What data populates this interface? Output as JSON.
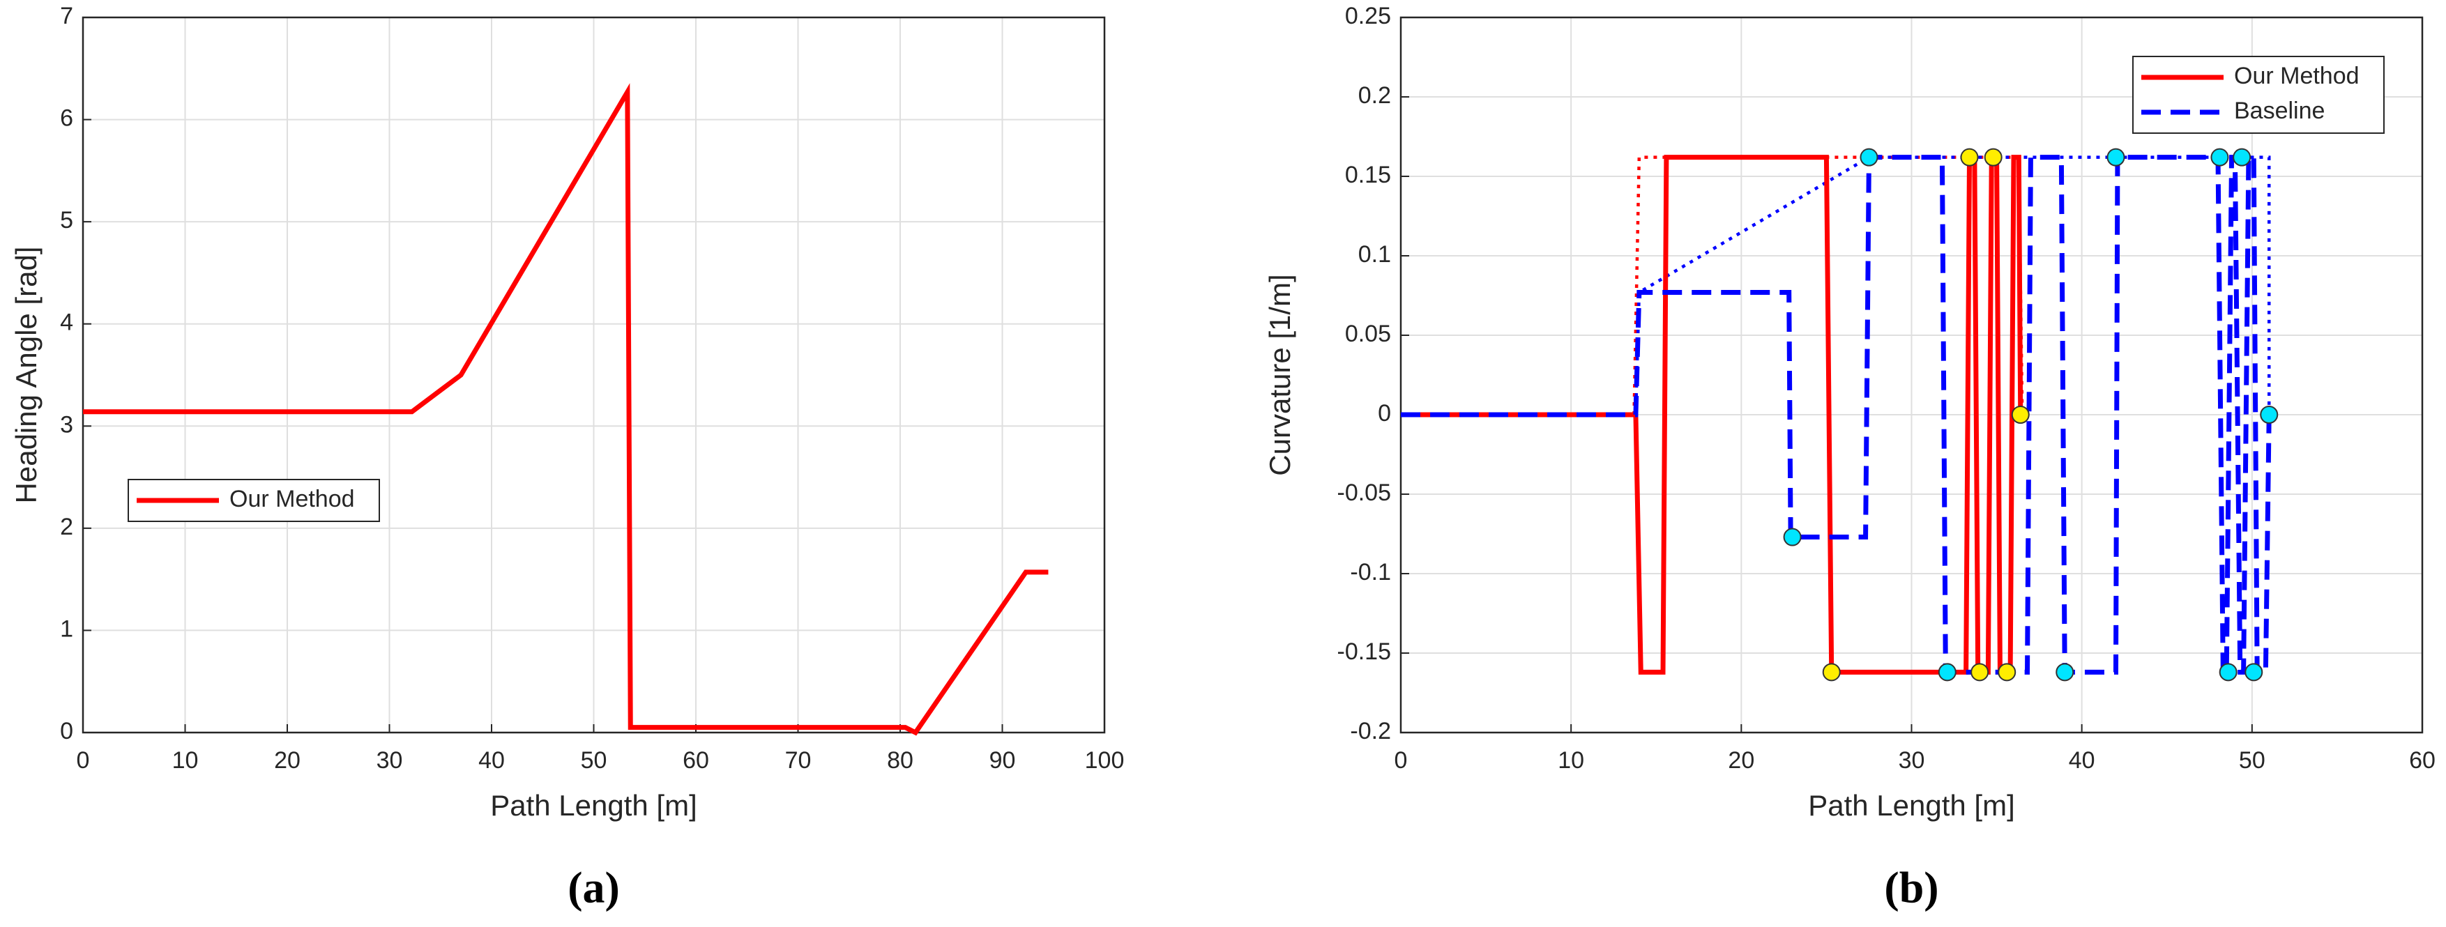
{
  "chart_data": [
    {
      "type": "line",
      "caption": "(a)",
      "xlabel": "Path Length [m]",
      "ylabel": "Heading Angle [rad]",
      "xlim": [
        0,
        100
      ],
      "xticks": [
        0,
        10,
        20,
        30,
        40,
        50,
        60,
        70,
        80,
        90,
        100
      ],
      "ylim": [
        0,
        7
      ],
      "yticks": [
        0,
        1,
        2,
        3,
        4,
        5,
        6,
        7
      ],
      "grid": true,
      "legend": "center left",
      "series": [
        {
          "name": "Our Method",
          "color": "#ff0000",
          "dash": "solid",
          "x": [
            0,
            32.2,
            37,
            53.3,
            53.6,
            80.5,
            81.5,
            92.3,
            94.5
          ],
          "values": [
            3.14,
            3.14,
            3.5,
            6.27,
            0.05,
            0.05,
            0,
            1.57,
            1.57
          ]
        }
      ]
    },
    {
      "type": "line",
      "caption": "(b)",
      "xlabel": "Path Length [m]",
      "ylabel": "Curvature [1/m]",
      "xlim": [
        0,
        60
      ],
      "xticks": [
        0,
        10,
        20,
        30,
        40,
        50,
        60
      ],
      "ylim": [
        -0.2,
        0.25
      ],
      "yticks": [
        -0.2,
        -0.15,
        -0.1,
        -0.05,
        0,
        0.05,
        0.1,
        0.15,
        0.2,
        0.25
      ],
      "grid": true,
      "legend": "upper right",
      "series": [
        {
          "color": "#ff0000",
          "dash": "dotted",
          "x": [
            13.7,
            14,
            36.3,
            36.5
          ],
          "values": [
            0,
            0.162,
            0.162,
            0
          ]
        },
        {
          "color": "#0000ff",
          "dash": "dotted",
          "x": [
            13.8,
            14,
            27.5,
            51,
            51
          ],
          "values": [
            0,
            0.077,
            0.162,
            0.162,
            0
          ]
        },
        {
          "name": "Our Method",
          "color": "#ff0000",
          "dash": "solid",
          "x": [
            0,
            13.8,
            14.1,
            15.4,
            15.6,
            25,
            25.3,
            33.2,
            33.4,
            33.7,
            33.9,
            34.5,
            34.7,
            35,
            35.2,
            35.8,
            36,
            36.3,
            36.4
          ],
          "values": [
            0,
            0,
            -0.162,
            -0.162,
            0.162,
            0.162,
            -0.162,
            -0.162,
            0.162,
            0.162,
            -0.162,
            -0.162,
            0.162,
            0.162,
            -0.162,
            -0.162,
            0.162,
            0.162,
            0
          ]
        },
        {
          "name": "Baseline",
          "color": "#0000ff",
          "dash": "dashed",
          "x": [
            0,
            13.8,
            14,
            22.8,
            22.9,
            27.3,
            27.5,
            31.8,
            32,
            36.8,
            37,
            38.8,
            39,
            42,
            42.1,
            48,
            48.3,
            48.5,
            48.8,
            49,
            49.3,
            49.5,
            49.8,
            50.1,
            50.3,
            50.8,
            51
          ],
          "values": [
            0,
            0,
            0.077,
            0.077,
            -0.077,
            -0.077,
            0.162,
            0.162,
            -0.162,
            -0.162,
            0.162,
            0.162,
            -0.162,
            -0.162,
            0.162,
            0.162,
            -0.162,
            -0.162,
            0.162,
            0.162,
            -0.162,
            -0.162,
            0.162,
            0.162,
            -0.162,
            -0.162,
            0
          ]
        },
        {
          "color": "#ffee00",
          "marker": "circle",
          "x": [
            25.3,
            33.4,
            34,
            34.8,
            35.6,
            36.4
          ],
          "values": [
            -0.162,
            0.162,
            -0.162,
            0.162,
            -0.162,
            0
          ]
        },
        {
          "color": "#00e5ff",
          "marker": "circle",
          "x": [
            23,
            27.5,
            32.1,
            39,
            42,
            48.1,
            48.6,
            49.4,
            50.1,
            51
          ],
          "values": [
            -0.077,
            0.162,
            -0.162,
            -0.162,
            0.162,
            0.162,
            -0.162,
            0.162,
            -0.162,
            0
          ]
        }
      ]
    }
  ]
}
